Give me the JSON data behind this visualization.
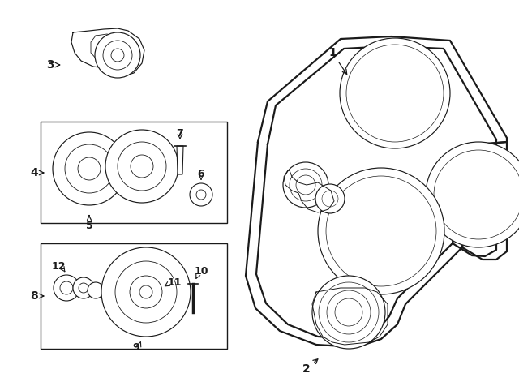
{
  "bg_color": "#ffffff",
  "line_color": "#1a1a1a",
  "fig_width": 6.4,
  "fig_height": 4.71,
  "belt_lw": 1.6,
  "part_lw": 0.85,
  "label_fontsize": 9
}
